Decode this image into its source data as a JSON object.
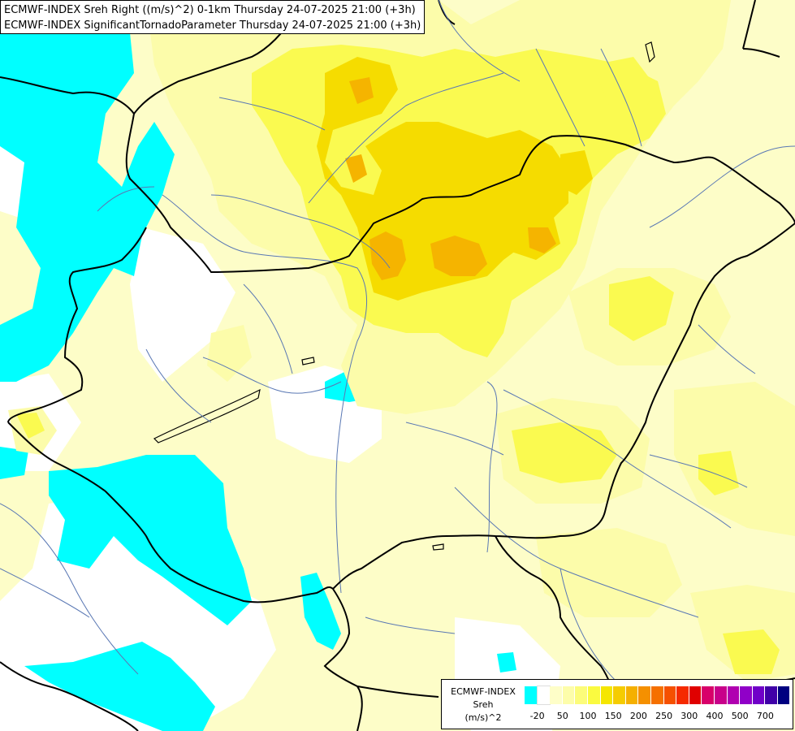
{
  "title": {
    "line1": "ECMWF-INDEX Sreh Right ((m/s)^2) 0-1km Thursday 24-07-2025 21:00 (+3h)",
    "line2": "ECMWF-INDEX SignificantTornadoParameter Thursday 24-07-2025 21:00 (+3h)"
  },
  "legend": {
    "line1": "ECMWF-INDEX",
    "line2": "Sreh",
    "line3": "(m/s)^2",
    "colors": [
      "#00ffff",
      "#ffffff",
      "#fefec8",
      "#fdfdaa",
      "#fcfc7a",
      "#fafa40",
      "#f5e600",
      "#f5cc00",
      "#f5b000",
      "#f59000",
      "#f57000",
      "#f55000",
      "#f52a00",
      "#e00000",
      "#d8006a",
      "#c8008a",
      "#b000b0",
      "#9000c8",
      "#7000c8",
      "#4000a8",
      "#000080"
    ],
    "ticks": [
      "-20",
      "50",
      "100",
      "150",
      "200",
      "250",
      "300",
      "400",
      "500",
      "700"
    ],
    "tick_positions": [
      1,
      3,
      5,
      7,
      9,
      11,
      13,
      15,
      17,
      19
    ]
  },
  "map": {
    "colors": {
      "cyan": "#00ffff",
      "white": "#ffffff",
      "pale": "#fdfdc8",
      "light": "#fcfcaa",
      "yellow": "#fafa50",
      "gold": "#f5dc00",
      "orange": "#f5b400"
    }
  }
}
